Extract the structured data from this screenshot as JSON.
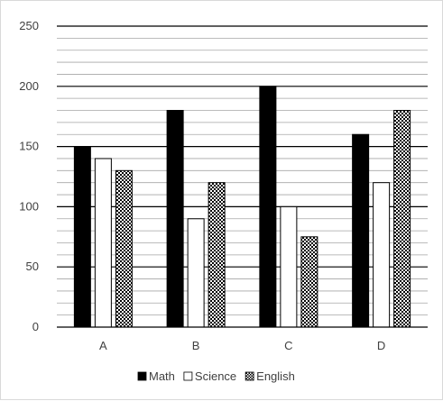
{
  "chart_data": {
    "type": "bar",
    "categories": [
      "A",
      "B",
      "C",
      "D"
    ],
    "series": [
      {
        "name": "Math",
        "values": [
          150,
          180,
          200,
          160
        ],
        "pattern": "solid",
        "color": "#000000"
      },
      {
        "name": "Science",
        "values": [
          140,
          90,
          100,
          120
        ],
        "pattern": "white",
        "color": "#ffffff"
      },
      {
        "name": "English",
        "values": [
          130,
          120,
          75,
          180
        ],
        "pattern": "checker",
        "color": "#000000"
      }
    ],
    "ylim": [
      0,
      250
    ],
    "y_ticks": [
      0,
      50,
      100,
      150,
      200,
      250
    ],
    "minor_gridline_step": 10,
    "grid": true,
    "legend_position": "bottom",
    "title": "",
    "xlabel": "",
    "ylabel": ""
  }
}
